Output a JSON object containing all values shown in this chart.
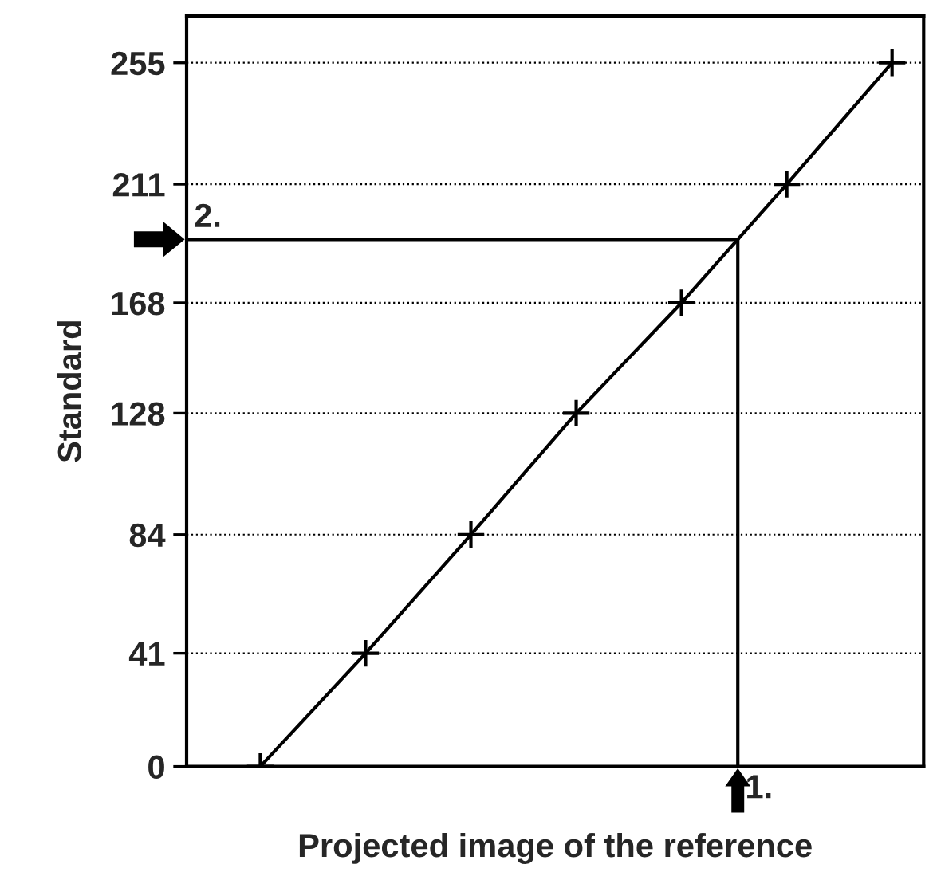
{
  "chart_data": {
    "type": "line",
    "xlabel": "Projected image of the reference",
    "ylabel": "Standard",
    "categories": [
      null,
      null,
      null,
      null,
      null,
      null,
      null
    ],
    "series": [
      {
        "color": "#000000",
        "values": [
          0,
          41,
          84,
          128,
          168,
          211,
          255
        ]
      }
    ],
    "marker": "cross",
    "line_style": "solid",
    "ylim": [
      0,
      272
    ],
    "yticks": [
      0,
      41,
      84,
      128,
      168,
      211,
      255
    ],
    "grid": "y",
    "ref_lines": [
      {
        "axis": "y",
        "value": 191,
        "color": "#000000"
      }
    ],
    "annotations": [
      "2.",
      "1."
    ]
  }
}
